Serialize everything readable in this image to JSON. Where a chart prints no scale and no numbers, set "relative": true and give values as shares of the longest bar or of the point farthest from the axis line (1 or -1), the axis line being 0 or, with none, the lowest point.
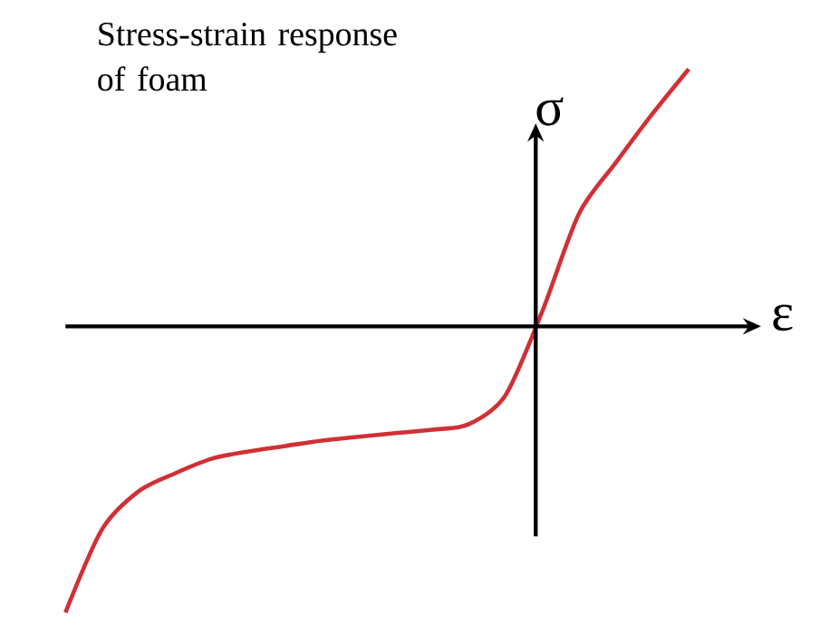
{
  "chart_data": {
    "type": "line",
    "title": "Stress-strain response of foam",
    "xlabel": "ε",
    "ylabel": "σ",
    "relative": true,
    "color": "#d03035",
    "categories": [
      null,
      null,
      null,
      null,
      null,
      null,
      null,
      null,
      null,
      null,
      null,
      null,
      null,
      null,
      null,
      null,
      null,
      null
    ],
    "values": [
      -1,
      -0.709,
      -0.576,
      -0.513,
      -0.462,
      -0.437,
      -0.418,
      -0.399,
      -0.386,
      -0.373,
      -0.361,
      -0.342,
      -0.241,
      0.051,
      0.392,
      0.57,
      0.741,
      0.899
    ]
  }
}
